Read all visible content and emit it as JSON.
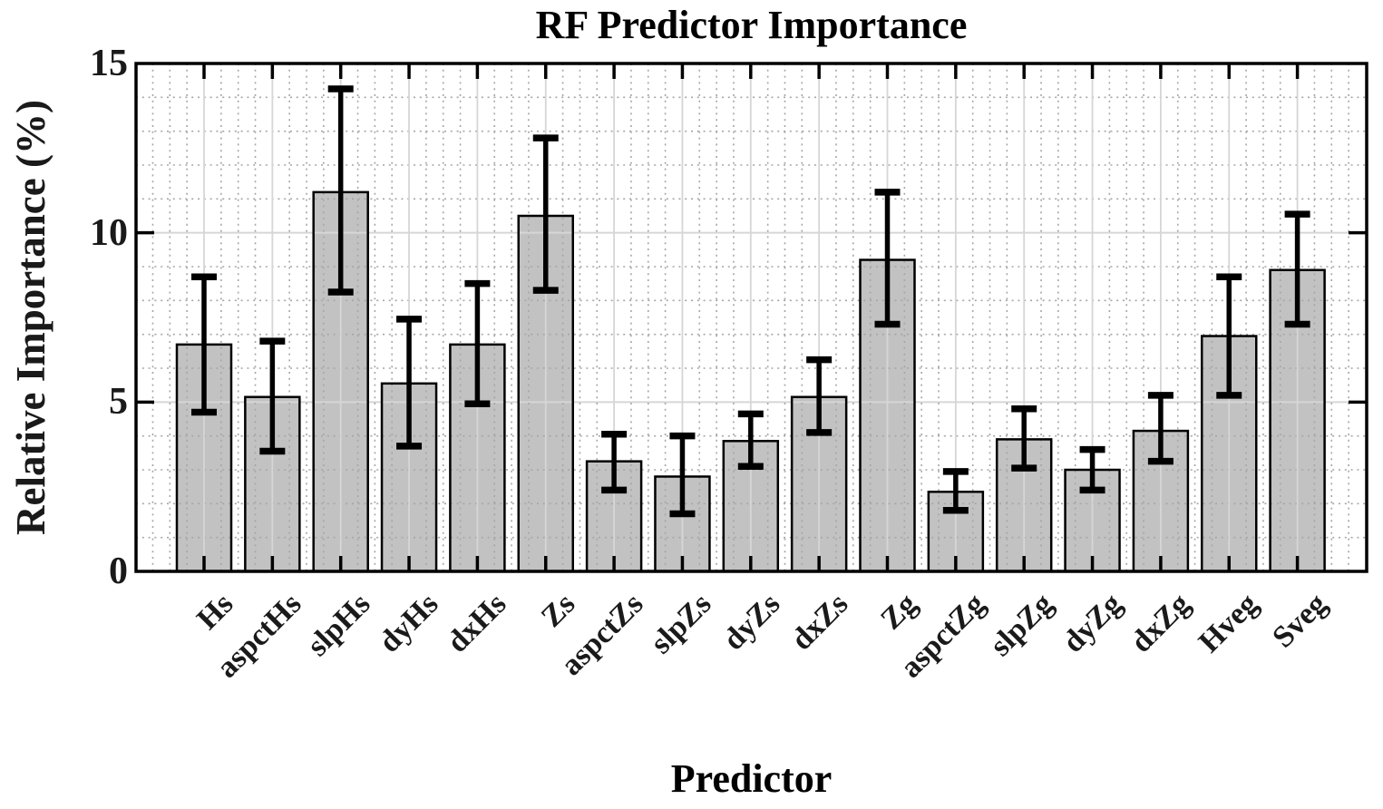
{
  "chart_data": {
    "type": "bar",
    "title": "RF Predictor Importance",
    "xlabel": "Predictor",
    "ylabel": "Relative Importance (%)",
    "ylim": [
      0,
      15
    ],
    "yticks": [
      0,
      5,
      10,
      15
    ],
    "grid": {
      "y_minor_step": 1,
      "y_major_lines": [
        5,
        10
      ],
      "x_major_lines": "one solid line per bar center",
      "x_minor_divisions_per_bar": 4,
      "minor_style": "dotted",
      "legend": "none"
    },
    "categories": [
      "Hs",
      "aspctHs",
      "slpHs",
      "dyHs",
      "dxHs",
      "Zs",
      "aspctZs",
      "slpZs",
      "dyZs",
      "dxZs",
      "Zg",
      "aspctZg",
      "slpZg",
      "dyZg",
      "dxZg",
      "Hveg",
      "Sveg"
    ],
    "values": [
      6.7,
      5.15,
      11.2,
      5.55,
      6.7,
      10.5,
      3.25,
      2.8,
      3.85,
      5.15,
      9.2,
      2.35,
      3.9,
      3.0,
      4.15,
      6.95,
      8.9
    ],
    "whisker_high": [
      8.7,
      6.8,
      14.25,
      7.45,
      8.5,
      12.8,
      4.05,
      4.0,
      4.65,
      6.25,
      11.2,
      2.95,
      4.8,
      3.6,
      5.2,
      8.7,
      10.55
    ],
    "whisker_low": [
      4.7,
      3.55,
      8.25,
      3.7,
      4.95,
      8.3,
      2.4,
      1.7,
      3.1,
      4.1,
      7.3,
      1.8,
      3.05,
      2.4,
      3.25,
      5.2,
      7.3
    ],
    "colors": {
      "bar_fill": "#c2c2c2",
      "bar_edge": "#000000",
      "errorbar": "#000000",
      "axis": "#000000",
      "grid_major": "#d6d6d6",
      "grid_minor": "#a6a6a6",
      "background": "#ffffff",
      "text": "#1a1a1a"
    }
  }
}
